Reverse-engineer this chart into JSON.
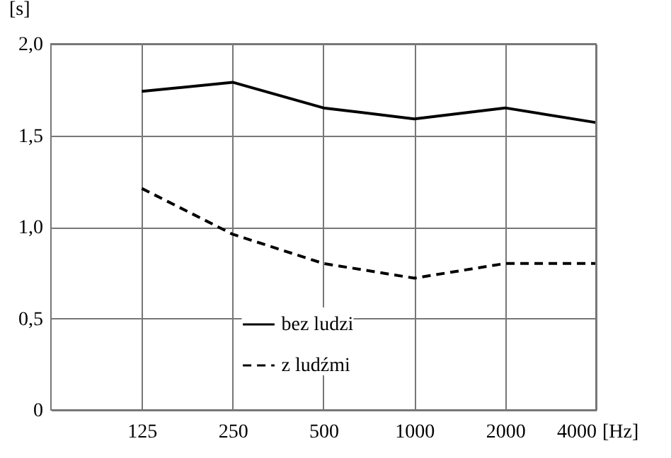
{
  "chart_data": {
    "type": "line",
    "xlabel": "[Hz]",
    "ylabel": "[s]",
    "x": [
      125,
      250,
      500,
      1000,
      2000,
      4000
    ],
    "series": [
      {
        "name": "bez ludzi",
        "color": "#000000",
        "line_style": "solid",
        "values": [
          1.74,
          1.79,
          1.65,
          1.59,
          1.65,
          1.57
        ]
      },
      {
        "name": "z ludźmi",
        "color": "#000000",
        "line_style": "dashed",
        "values": [
          1.21,
          0.96,
          0.8,
          0.72,
          0.8,
          0.8
        ]
      }
    ],
    "log": "x",
    "xlim": [
      62.5,
      4000
    ],
    "xticks": [
      125,
      250,
      500,
      1000,
      2000,
      4000
    ],
    "ylim": [
      0,
      2.0
    ],
    "yticks": [
      {
        "value": 0,
        "label": "0"
      },
      {
        "value": 0.5,
        "label": "0,5"
      },
      {
        "value": 1.0,
        "label": "1,0"
      },
      {
        "value": 1.5,
        "label": "1,5"
      },
      {
        "value": 2.0,
        "label": "2,0"
      }
    ],
    "grid": true,
    "legend": "bottom",
    "marker": "none"
  }
}
